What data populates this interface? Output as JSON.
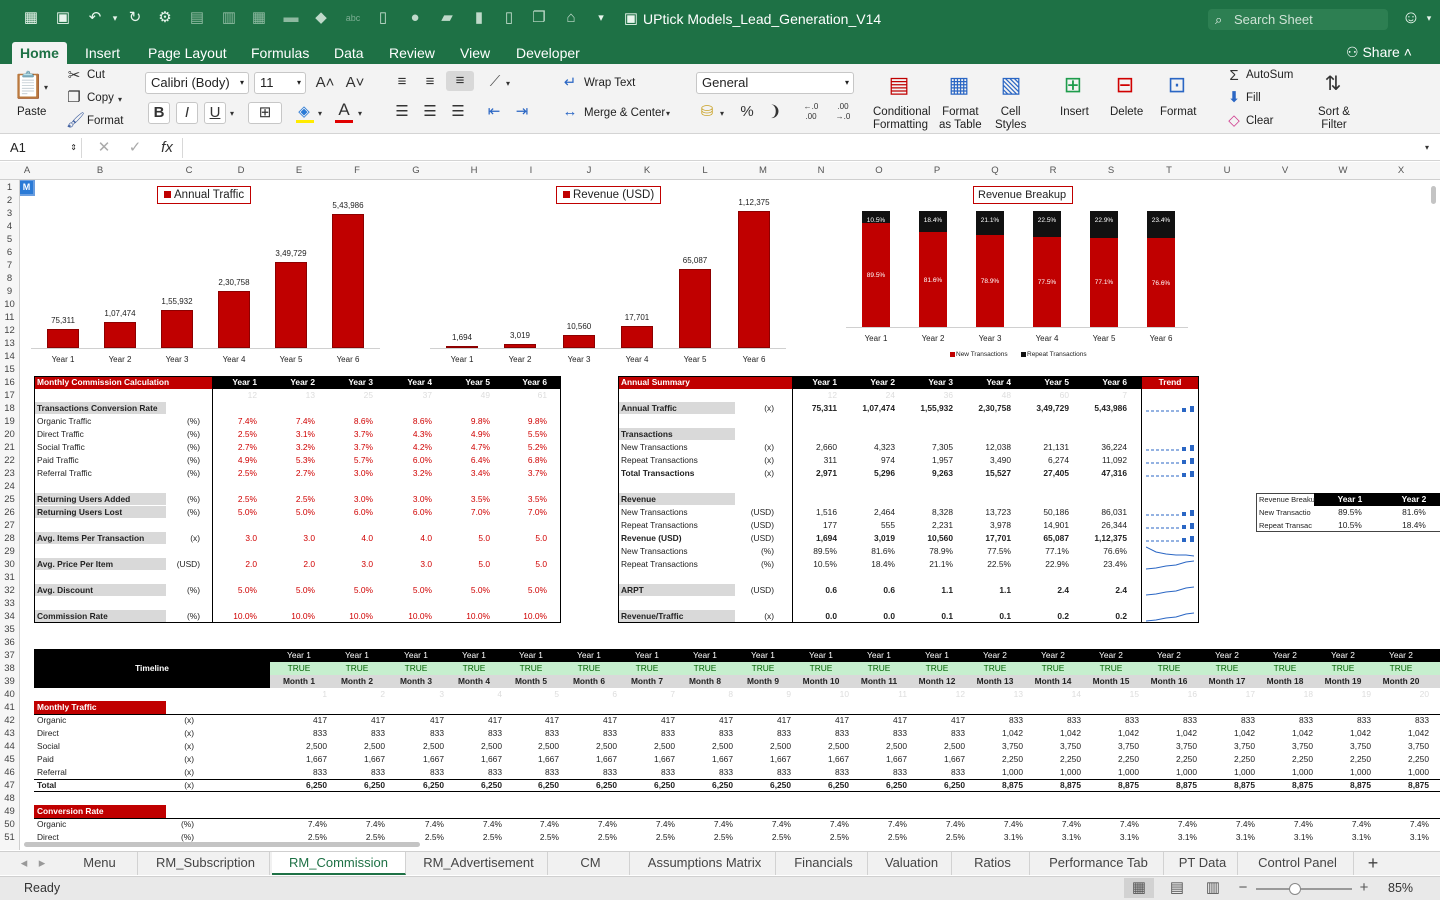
{
  "app": {
    "title": "UPtick Models_Lead_Generation_V14",
    "search_placeholder": "Search Sheet",
    "share": "Share",
    "accent": "#1e7145"
  },
  "tabs": [
    "Home",
    "Insert",
    "Page Layout",
    "Formulas",
    "Data",
    "Review",
    "View",
    "Developer"
  ],
  "ribbon": {
    "paste": "Paste",
    "cut": "Cut",
    "copy": "Copy",
    "format": "Format",
    "font_name": "Calibri (Body)",
    "font_size": "11",
    "wrap_text": "Wrap Text",
    "merge_center": "Merge & Center",
    "number_format": "General",
    "conditional_formatting": [
      "Conditional",
      "Formatting"
    ],
    "format_as_table": [
      "Format",
      "as Table"
    ],
    "cell_styles": [
      "Cell",
      "Styles"
    ],
    "insert": "Insert",
    "delete": "Delete",
    "format_cells": "Format",
    "autosum": "AutoSum",
    "fill": "Fill",
    "clear": "Clear",
    "sort_filter": [
      "Sort &",
      "Filter"
    ]
  },
  "formula_bar": {
    "name_box": "A1",
    "fx": "fx",
    "formula": ""
  },
  "columns": [
    "A",
    "B",
    "C",
    "D",
    "E",
    "F",
    "G",
    "H",
    "I",
    "J",
    "K",
    "L",
    "M",
    "N",
    "O",
    "P",
    "Q",
    "R",
    "S",
    "T",
    "U",
    "V",
    "W",
    "X"
  ],
  "rows": [
    "1",
    "2",
    "3",
    "4",
    "5",
    "6",
    "7",
    "8",
    "9",
    "10",
    "11",
    "12",
    "13",
    "14",
    "15",
    "16",
    "17",
    "18",
    "19",
    "20",
    "21",
    "22",
    "23",
    "24",
    "25",
    "26",
    "27",
    "28",
    "29",
    "30",
    "31",
    "32",
    "33",
    "34",
    "35",
    "36",
    "37",
    "38",
    "39",
    "40",
    "41",
    "42",
    "43",
    "44",
    "45",
    "46",
    "47",
    "48",
    "49",
    "50",
    "51"
  ],
  "logo_mark": "M",
  "charts": {
    "traffic": {
      "title": "Annual Traffic",
      "categories": [
        "Year 1",
        "Year 2",
        "Year 3",
        "Year 4",
        "Year 5",
        "Year 6"
      ],
      "values": [
        75311,
        107474,
        155932,
        230758,
        349729,
        543986
      ],
      "value_labels": [
        "75,311",
        "1,07,474",
        "1,55,932",
        "2,30,758",
        "3,49,729",
        "5,43,986"
      ]
    },
    "revenue": {
      "title": "Revenue (USD)",
      "categories": [
        "Year 1",
        "Year 2",
        "Year 3",
        "Year 4",
        "Year 5",
        "Year 6"
      ],
      "values": [
        1694,
        3019,
        10560,
        17701,
        65087,
        112375
      ],
      "value_labels": [
        "1,694",
        "3,019",
        "10,560",
        "17,701",
        "65,087",
        "1,12,375"
      ]
    },
    "breakup": {
      "title": "Revenue Breakup",
      "categories": [
        "Year 1",
        "Year 2",
        "Year 3",
        "Year 4",
        "Year 5",
        "Year 6"
      ],
      "new_pct": [
        89.5,
        81.6,
        78.9,
        77.5,
        77.1,
        76.6
      ],
      "repeat_pct": [
        10.5,
        18.4,
        21.1,
        22.5,
        22.9,
        23.4
      ],
      "new_labels": [
        "89.5%",
        "81.6%",
        "78.9%",
        "77.5%",
        "77.1%",
        "76.6%"
      ],
      "repeat_labels": [
        "10.5%",
        "18.4%",
        "21.1%",
        "22.5%",
        "22.9%",
        "23.4%"
      ],
      "legend": [
        "New Transactions",
        "Repeat Transactions"
      ],
      "colors": {
        "new": "#c00000",
        "repeat": "#111111"
      }
    }
  },
  "mcc": {
    "title": "Monthly Commission Calculation",
    "years": [
      "Year 1",
      "Year 2",
      "Year 3",
      "Year 4",
      "Year 5",
      "Year 6"
    ],
    "faint": [
      "12",
      "13",
      "25",
      "37",
      "49",
      "61"
    ],
    "rows": [
      {
        "label": "Transactions Conversion Rate",
        "unit": "",
        "vals": [],
        "bold": true,
        "grey": true
      },
      {
        "label": "Organic Traffic",
        "unit": "(%)",
        "vals": [
          "7.4%",
          "7.4%",
          "8.6%",
          "8.6%",
          "9.8%",
          "9.8%"
        ]
      },
      {
        "label": "Direct Traffic",
        "unit": "(%)",
        "vals": [
          "2.5%",
          "3.1%",
          "3.7%",
          "4.3%",
          "4.9%",
          "5.5%"
        ]
      },
      {
        "label": "Social Traffic",
        "unit": "(%)",
        "vals": [
          "2.7%",
          "3.2%",
          "3.7%",
          "4.2%",
          "4.7%",
          "5.2%"
        ]
      },
      {
        "label": "Paid Traffic",
        "unit": "(%)",
        "vals": [
          "4.9%",
          "5.3%",
          "5.7%",
          "6.0%",
          "6.4%",
          "6.8%"
        ]
      },
      {
        "label": "Referral Traffic",
        "unit": "(%)",
        "vals": [
          "2.5%",
          "2.7%",
          "3.0%",
          "3.2%",
          "3.4%",
          "3.7%"
        ]
      },
      {
        "label": "",
        "unit": "",
        "vals": []
      },
      {
        "label": "Returning Users Added",
        "unit": "(%)",
        "vals": [
          "2.5%",
          "2.5%",
          "3.0%",
          "3.0%",
          "3.5%",
          "3.5%"
        ],
        "bold": true,
        "grey": true
      },
      {
        "label": "Returning Users Lost",
        "unit": "(%)",
        "vals": [
          "5.0%",
          "5.0%",
          "6.0%",
          "6.0%",
          "7.0%",
          "7.0%"
        ],
        "bold": true,
        "grey": true
      },
      {
        "label": "",
        "unit": "",
        "vals": []
      },
      {
        "label": "Avg. Items Per Transaction",
        "unit": "(x)",
        "vals": [
          "3.0",
          "3.0",
          "4.0",
          "4.0",
          "5.0",
          "5.0"
        ],
        "bold": true,
        "grey": true
      },
      {
        "label": "",
        "unit": "",
        "vals": []
      },
      {
        "label": "Avg. Price Per Item",
        "unit": "(USD)",
        "vals": [
          "2.0",
          "2.0",
          "3.0",
          "3.0",
          "5.0",
          "5.0"
        ],
        "bold": true,
        "grey": true
      },
      {
        "label": "",
        "unit": "",
        "vals": []
      },
      {
        "label": "Avg. Discount",
        "unit": "(%)",
        "vals": [
          "5.0%",
          "5.0%",
          "5.0%",
          "5.0%",
          "5.0%",
          "5.0%"
        ],
        "bold": true,
        "grey": true
      },
      {
        "label": "",
        "unit": "",
        "vals": []
      },
      {
        "label": "Commission Rate",
        "unit": "(%)",
        "vals": [
          "10.0%",
          "10.0%",
          "10.0%",
          "10.0%",
          "10.0%",
          "10.0%"
        ],
        "bold": true,
        "grey": true
      }
    ]
  },
  "summary": {
    "title": "Annual Summary",
    "trend": "Trend",
    "years": [
      "Year 1",
      "Year 2",
      "Year 3",
      "Year 4",
      "Year 5",
      "Year 6"
    ],
    "faint": [
      "12",
      "24",
      "36",
      "48",
      "60",
      "7"
    ],
    "rows": [
      {
        "label": "Annual Traffic",
        "unit": "(x)",
        "vals": [
          "75,311",
          "1,07,474",
          "1,55,932",
          "2,30,758",
          "3,49,729",
          "5,43,986"
        ],
        "bold": true,
        "grey": true,
        "spark": "bars"
      },
      {
        "label": "",
        "unit": "",
        "vals": []
      },
      {
        "label": "Transactions",
        "unit": "",
        "vals": [],
        "bold": true,
        "grey": true
      },
      {
        "label": "New Transactions",
        "unit": "(x)",
        "vals": [
          "2,660",
          "4,323",
          "7,305",
          "12,038",
          "21,131",
          "36,224"
        ],
        "spark": "bars"
      },
      {
        "label": "Repeat Transactions",
        "unit": "(x)",
        "vals": [
          "311",
          "974",
          "1,957",
          "3,490",
          "6,274",
          "11,092"
        ],
        "spark": "bars"
      },
      {
        "label": "Total Transactions",
        "unit": "(x)",
        "vals": [
          "2,971",
          "5,296",
          "9,263",
          "15,527",
          "27,405",
          "47,316"
        ],
        "bold": true,
        "spark": "bars"
      },
      {
        "label": "",
        "unit": "",
        "vals": []
      },
      {
        "label": "Revenue",
        "unit": "",
        "vals": [],
        "bold": true,
        "grey": true
      },
      {
        "label": "New Transactions",
        "unit": "(USD)",
        "vals": [
          "1,516",
          "2,464",
          "8,328",
          "13,723",
          "50,186",
          "86,031"
        ],
        "spark": "bars"
      },
      {
        "label": "Repeat Transactions",
        "unit": "(USD)",
        "vals": [
          "177",
          "555",
          "2,231",
          "3,978",
          "14,901",
          "26,344"
        ],
        "spark": "bars"
      },
      {
        "label": "Revenue (USD)",
        "unit": "(USD)",
        "vals": [
          "1,694",
          "3,019",
          "10,560",
          "17,701",
          "65,087",
          "1,12,375"
        ],
        "bold": true,
        "spark": "bars"
      },
      {
        "label": "New Transactions",
        "unit": "(%)",
        "vals": [
          "89.5%",
          "81.6%",
          "78.9%",
          "77.5%",
          "77.1%",
          "76.6%"
        ],
        "spark": "down"
      },
      {
        "label": "Repeat Transactions",
        "unit": "(%)",
        "vals": [
          "10.5%",
          "18.4%",
          "21.1%",
          "22.5%",
          "22.9%",
          "23.4%"
        ],
        "spark": "up"
      },
      {
        "label": "",
        "unit": "",
        "vals": []
      },
      {
        "label": "ARPT",
        "unit": "(USD)",
        "vals": [
          "0.6",
          "0.6",
          "1.1",
          "1.1",
          "2.4",
          "2.4"
        ],
        "bold": true,
        "grey": true,
        "spark": "up"
      },
      {
        "label": "",
        "unit": "",
        "vals": []
      },
      {
        "label": "Revenue/Traffic",
        "unit": "(x)",
        "vals": [
          "0.0",
          "0.0",
          "0.1",
          "0.1",
          "0.2",
          "0.2"
        ],
        "bold": true,
        "grey": true,
        "spark": "up"
      }
    ]
  },
  "mini_table": {
    "header": [
      "Revenue Breaku",
      "Year 1",
      "Year 2"
    ],
    "rows": [
      [
        "New Transactio",
        "89.5%",
        "81.6%"
      ],
      [
        "Repeat Transac",
        "10.5%",
        "18.4%"
      ]
    ]
  },
  "timeline": {
    "label": "Timeline",
    "years": [
      "Year 1",
      "Year 1",
      "Year 1",
      "Year 1",
      "Year 1",
      "Year 1",
      "Year 1",
      "Year 1",
      "Year 1",
      "Year 1",
      "Year 1",
      "Year 1",
      "Year 2",
      "Year 2",
      "Year 2",
      "Year 2",
      "Year 2",
      "Year 2",
      "Year 2",
      "Year 2"
    ],
    "flag": "TRUE",
    "months": [
      "Month 1",
      "Month 2",
      "Month 3",
      "Month 4",
      "Month 5",
      "Month 6",
      "Month 7",
      "Month 8",
      "Month 9",
      "Month 10",
      "Month 11",
      "Month 12",
      "Month 13",
      "Month 14",
      "Month 15",
      "Month 16",
      "Month 17",
      "Month 18",
      "Month 19",
      "Month 20"
    ],
    "faint": [
      "1",
      "2",
      "3",
      "4",
      "5",
      "6",
      "7",
      "8",
      "9",
      "10",
      "11",
      "12",
      "13",
      "14",
      "15",
      "16",
      "17",
      "18",
      "19",
      "20"
    ]
  },
  "monthly_traffic": {
    "title": "Monthly Traffic",
    "rows": [
      {
        "label": "Organic",
        "unit": "(x)",
        "y1": "417",
        "y2": "833"
      },
      {
        "label": "Direct",
        "unit": "(x)",
        "y1": "833",
        "y2": "1,042"
      },
      {
        "label": "Social",
        "unit": "(x)",
        "y1": "2,500",
        "y2": "3,750"
      },
      {
        "label": "Paid",
        "unit": "(x)",
        "y1": "1,667",
        "y2": "2,250"
      },
      {
        "label": "Referral",
        "unit": "(x)",
        "y1": "833",
        "y2": "1,000"
      },
      {
        "label": "Total",
        "unit": "(x)",
        "y1": "6,250",
        "y2": "8,875",
        "bold": true
      }
    ]
  },
  "conversion_rate": {
    "title": "Conversion Rate",
    "rows": [
      {
        "label": "Organic",
        "unit": "(%)",
        "y1": "7.4%",
        "y2": "7.4%"
      },
      {
        "label": "Direct",
        "unit": "(%)",
        "y1": "2.5%",
        "y2": "3.1%"
      }
    ]
  },
  "sheet_tabs": [
    "Menu",
    "RM_Subscription",
    "RM_Commission",
    "RM_Advertisement",
    "CM",
    "Assumptions Matrix",
    "Financials",
    "Valuation",
    "Ratios",
    "Performance Tab",
    "PT Data",
    "Control Panel"
  ],
  "active_sheet": "RM_Commission",
  "status": {
    "ready": "Ready",
    "zoom": "85%"
  }
}
